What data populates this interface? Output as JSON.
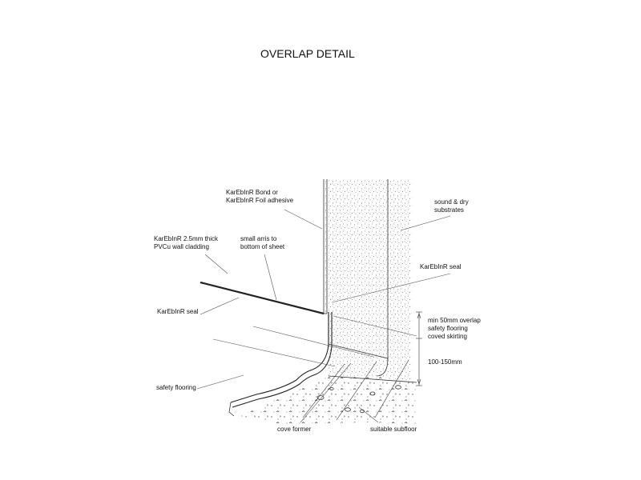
{
  "title": "OVERLAP DETAIL",
  "labels": {
    "bond_1": "KarEbInR Bond or",
    "bond_2": "KarEbInR Foil adhesive",
    "substrates_1": "sound & dry",
    "substrates_2": "substrates",
    "cladding_1": "KarEbInR 2.5mm thick",
    "cladding_2": "PVCu wall cladding",
    "arris_1": "small arris to",
    "arris_2": "bottom of sheet",
    "seal_right": "KarEbInR seal",
    "seal_left": "KarEbInR seal",
    "overlap_1": "min 50mm overlap",
    "overlap_2": "safety flooring",
    "overlap_3": "coved skirting",
    "height": "100-150mm",
    "safety_flooring": "safety flooring",
    "cove_former": "cove former",
    "subfloor": "suitable subfloor"
  }
}
